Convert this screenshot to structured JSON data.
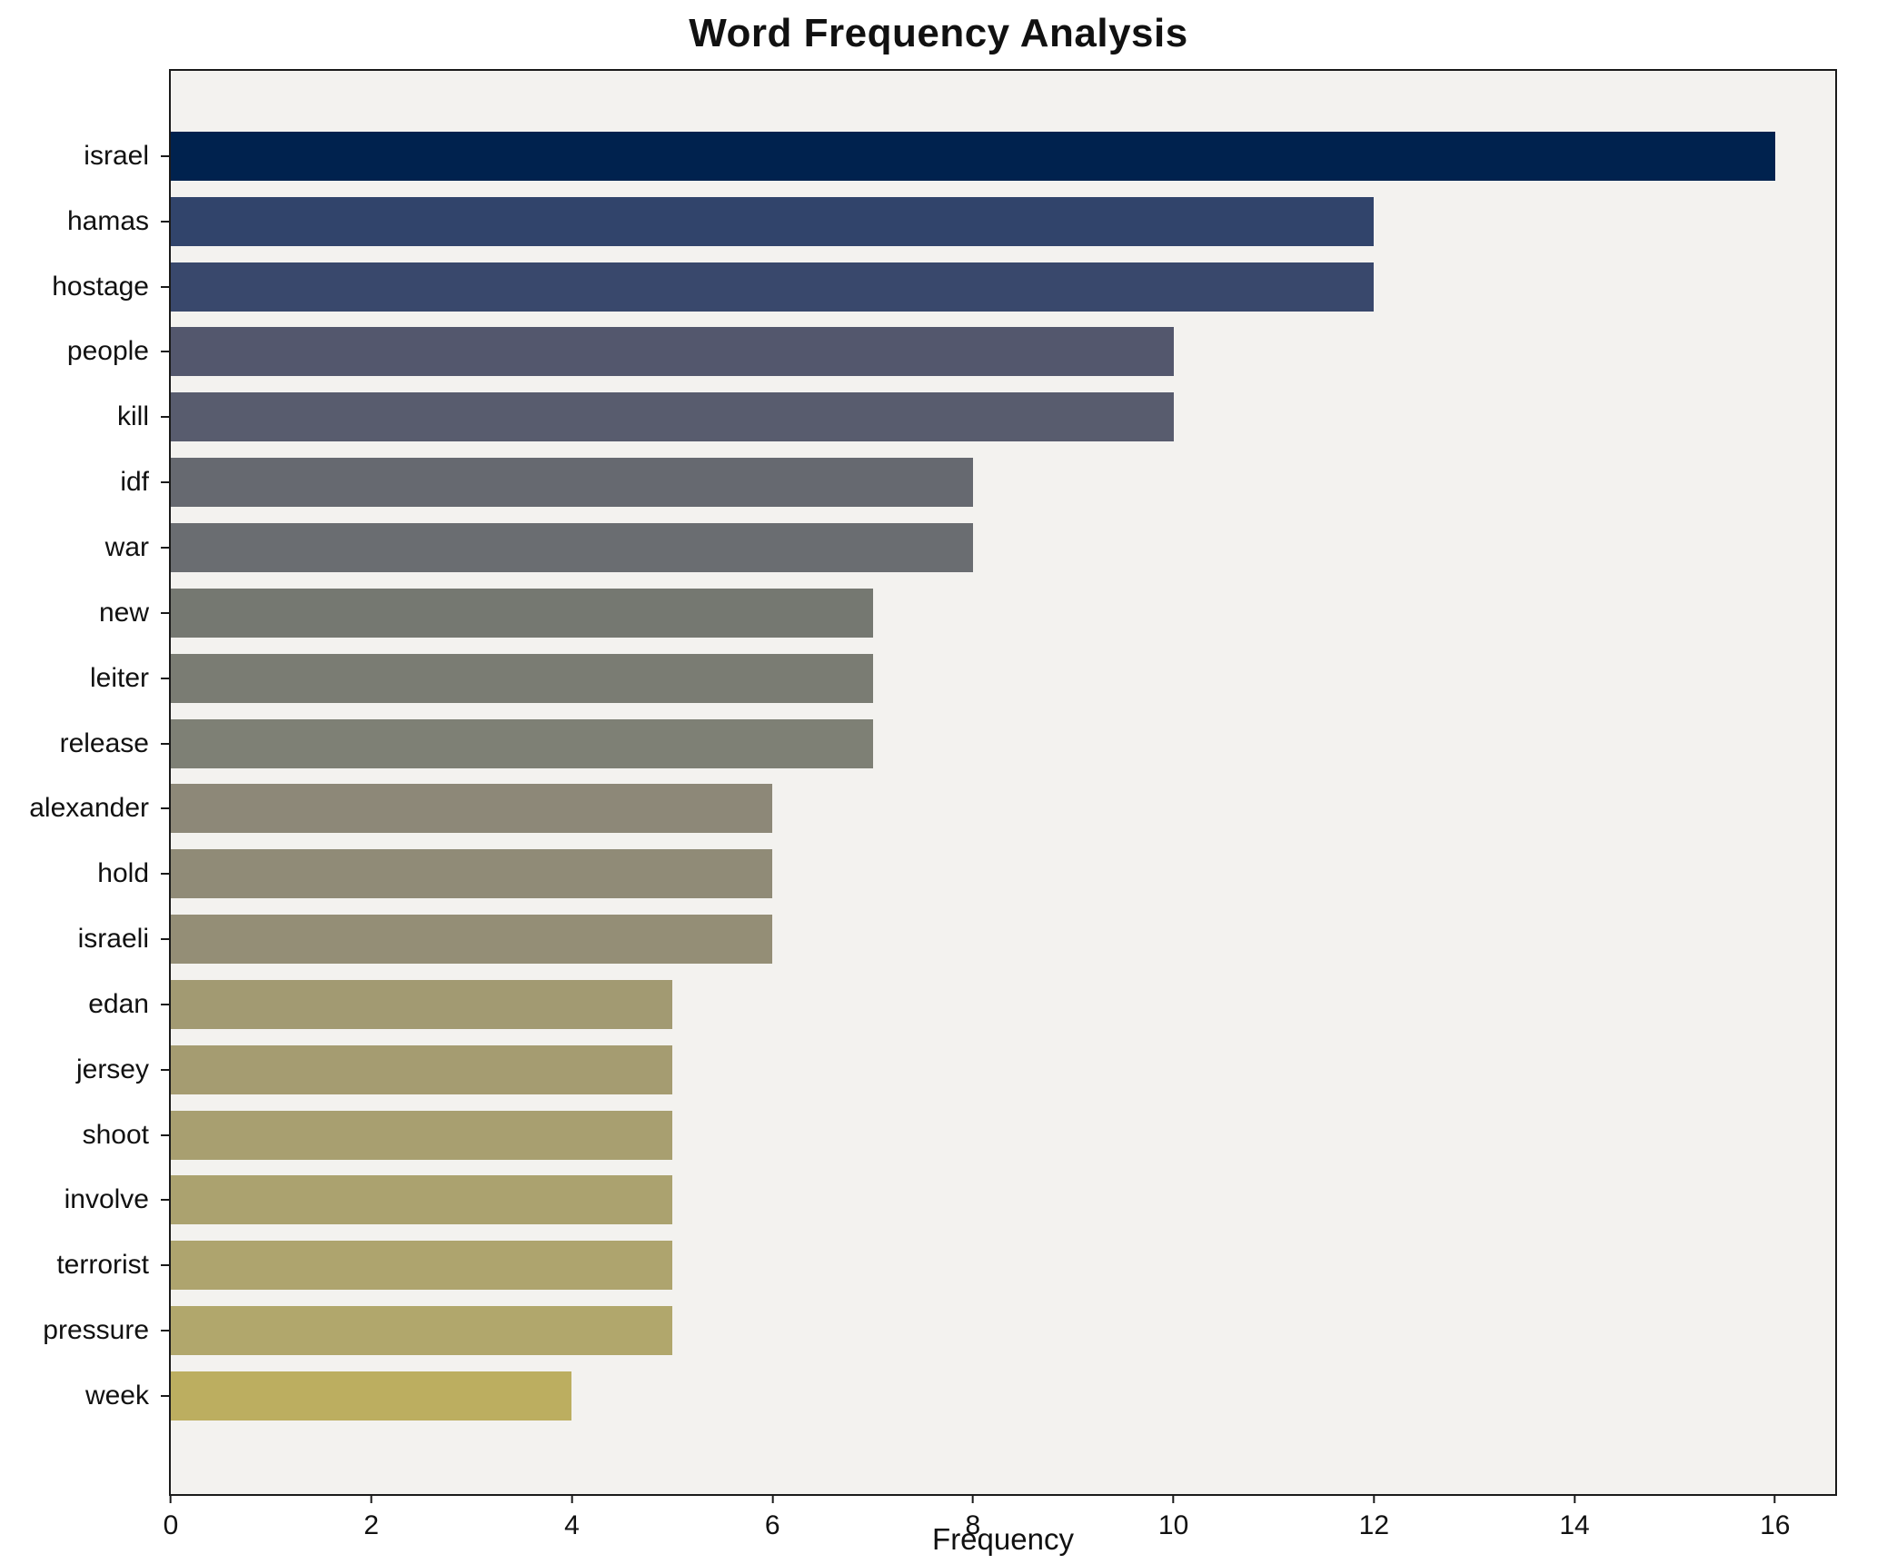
{
  "title": "Word Frequency Analysis",
  "chart_data": {
    "type": "bar",
    "orientation": "horizontal",
    "title": "Word Frequency Analysis",
    "xlabel": "Frequency",
    "ylabel": "",
    "grid": false,
    "legend": "none",
    "xlim": [
      0,
      16.6
    ],
    "xticks": [
      0,
      2,
      4,
      6,
      8,
      10,
      12,
      14,
      16
    ],
    "categories": [
      "israel",
      "hamas",
      "hostage",
      "people",
      "kill",
      "idf",
      "war",
      "new",
      "leiter",
      "release",
      "alexander",
      "hold",
      "israeli",
      "edan",
      "jersey",
      "shoot",
      "involve",
      "terrorist",
      "pressure",
      "week"
    ],
    "values": [
      16,
      12,
      12,
      10,
      10,
      8,
      8,
      7,
      7,
      7,
      6,
      6,
      6,
      5,
      5,
      5,
      5,
      5,
      5,
      4
    ],
    "colors": [
      "#00224e",
      "#31446b",
      "#39486c",
      "#53576d",
      "#585c6e",
      "#666970",
      "#6a6d71",
      "#757871",
      "#7a7c73",
      "#7e8075",
      "#8d8878",
      "#908b77",
      "#948e76",
      "#a29a72",
      "#a59c71",
      "#a89f70",
      "#aba26f",
      "#aea46e",
      "#b1a76c",
      "#bcae60"
    ],
    "plot_bg_color": "#f3f2ef",
    "figure_bg_color": "#ffffff",
    "axis_color": "#1a1a1a"
  }
}
